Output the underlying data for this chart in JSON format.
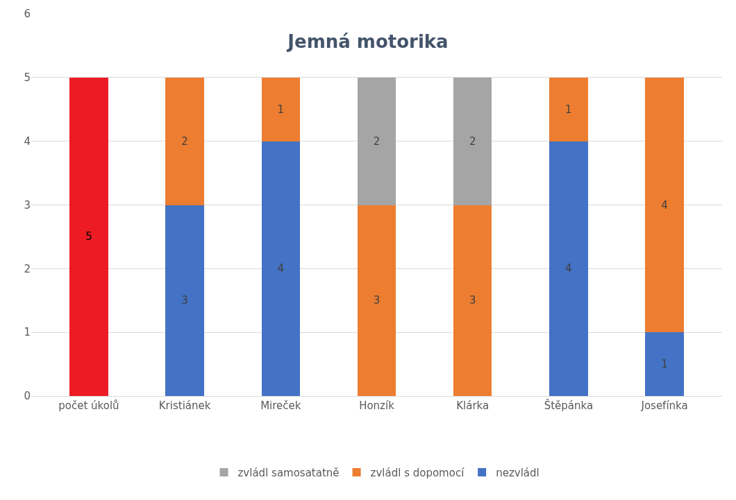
{
  "chart_data": {
    "type": "bar",
    "title": "Jemná motorika",
    "stacked": true,
    "data_labels": true,
    "grid": "y",
    "legend": "bottom",
    "ylim": [
      0,
      6
    ],
    "yticks": [
      0,
      1,
      2,
      3,
      4,
      5,
      6
    ],
    "categories": [
      "počet úkolů",
      "Kristiánek",
      "Mireček",
      "Honzík",
      "Klárka",
      "Štěpánka",
      "Josefínka"
    ],
    "series": [
      {
        "color": "#ed1c24",
        "values": [
          5,
          null,
          null,
          null,
          null,
          null,
          null
        ]
      },
      {
        "name": "nezvládl",
        "color": "#4472c4",
        "values": [
          null,
          3,
          4,
          null,
          null,
          4,
          1
        ]
      },
      {
        "name": "zvládl s dopomocí",
        "color": "#ed7d31",
        "values": [
          null,
          2,
          1,
          3,
          3,
          1,
          4
        ]
      },
      {
        "name": "zvládl samosatatně",
        "color": "#a5a5a5",
        "values": [
          null,
          null,
          null,
          2,
          2,
          null,
          null
        ]
      }
    ]
  }
}
